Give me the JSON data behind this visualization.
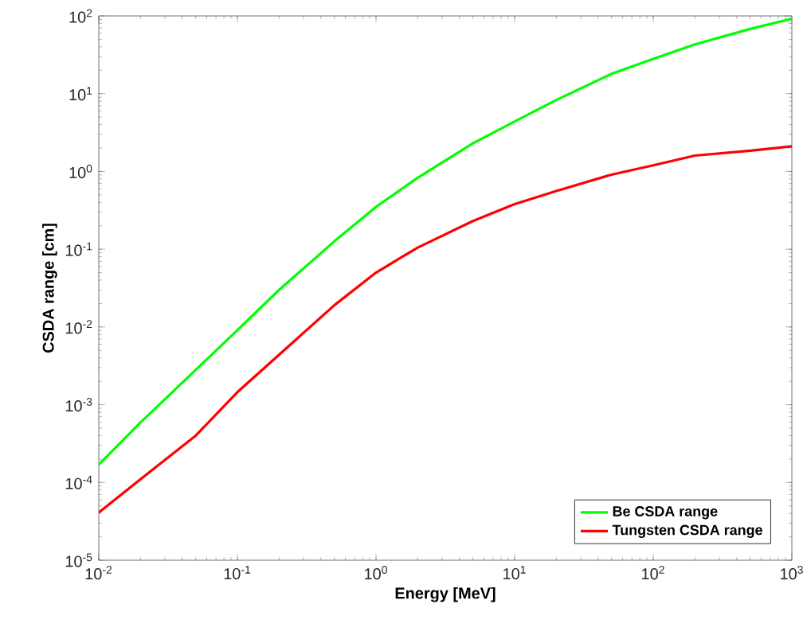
{
  "chart_data": {
    "type": "line",
    "xlabel": "Energy [MeV]",
    "ylabel": "CSDA range [cm]",
    "log": "xy",
    "grid": false,
    "legend": "bottom right",
    "marker": "none",
    "line_style": "solid",
    "xlim": [
      0.01,
      1000
    ],
    "ylim": [
      1e-05,
      100
    ],
    "xticks": [
      {
        "value": 0.01,
        "label": "10$^{-2}$"
      },
      {
        "value": 0.1,
        "label": "10$^{-1}$"
      },
      {
        "value": 1,
        "label": "10$^{0}$"
      },
      {
        "value": 10,
        "label": "10$^{1}$"
      },
      {
        "value": 100,
        "label": "10$^{2}$"
      },
      {
        "value": 1000,
        "label": "10$^{3}$"
      }
    ],
    "yticks": [
      {
        "value": 1e-05,
        "label": "10$^{-5}$"
      },
      {
        "value": 0.0001,
        "label": "10$^{-4}$"
      },
      {
        "value": 0.001,
        "label": "10$^{-3}$"
      },
      {
        "value": 0.01,
        "label": "10$^{-2}$"
      },
      {
        "value": 0.1,
        "label": "10$^{-1}$"
      },
      {
        "value": 1,
        "label": "10$^{0}$"
      },
      {
        "value": 10,
        "label": "10$^{1}$"
      },
      {
        "value": 100,
        "label": "10$^{2}$"
      }
    ],
    "x": [
      0.01,
      0.02,
      0.05,
      0.1,
      0.2,
      0.5,
      1,
      2,
      5,
      10,
      20,
      50,
      100,
      200,
      500,
      1000
    ],
    "series": [
      {
        "name": "Be CSDA range",
        "color": "#00ff00",
        "values": [
          0.00017,
          0.00059,
          0.0028,
          0.0091,
          0.03,
          0.126,
          0.35,
          0.83,
          2.3,
          4.4,
          8.3,
          18,
          28,
          43,
          68,
          92
        ]
      },
      {
        "name": "Tungsten CSDA range",
        "color": "#ff0000",
        "values": [
          4.1e-05,
          0.00011,
          0.0004,
          0.00145,
          0.0044,
          0.019,
          0.05,
          0.105,
          0.23,
          0.38,
          0.56,
          0.91,
          1.2,
          1.6,
          1.85,
          2.1
        ]
      }
    ]
  }
}
